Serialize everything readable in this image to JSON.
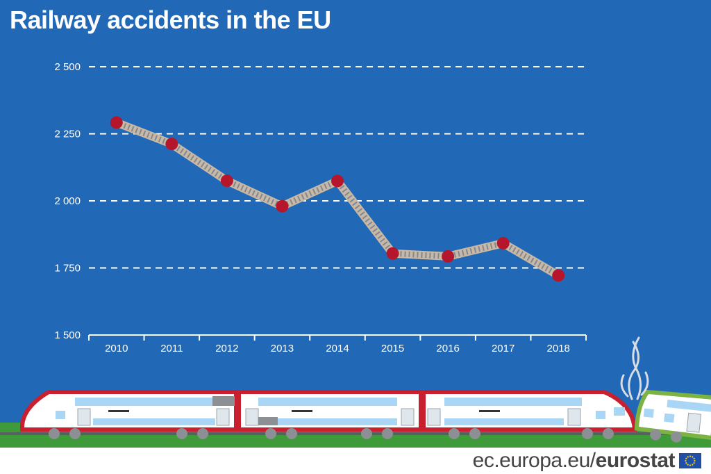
{
  "title": "Railway accidents in the EU",
  "chart_data": {
    "type": "line",
    "title": "Railway accidents in the EU",
    "xlabel": "",
    "ylabel": "",
    "categories": [
      "2010",
      "2011",
      "2012",
      "2013",
      "2014",
      "2015",
      "2016",
      "2017",
      "2018"
    ],
    "values": [
      2292,
      2212,
      2075,
      1980,
      2074,
      1804,
      1793,
      1842,
      1722
    ],
    "ylim": [
      1500,
      2500
    ],
    "yticks": [
      1500,
      1750,
      2000,
      2250,
      2500
    ],
    "ytick_labels": [
      "1 500",
      "1 750",
      "2 000",
      "2 250",
      "2 500"
    ],
    "grid": "horizontal-dashed",
    "legend": "none"
  },
  "colors": {
    "background": "#2168b6",
    "marker": "#b5162b",
    "track_rail": "#c9b9a4",
    "track_sleeper": "#7f8795",
    "grid": "#ffffff",
    "train_body": "#ffffff",
    "train_stripe": "#c8202f",
    "train_window": "#a9d6f5",
    "grass": "#3f9b3a"
  },
  "footer": {
    "domain": "ec.europa.eu/",
    "brand": "eurostat"
  },
  "flag_icon": "eu-flag-icon"
}
